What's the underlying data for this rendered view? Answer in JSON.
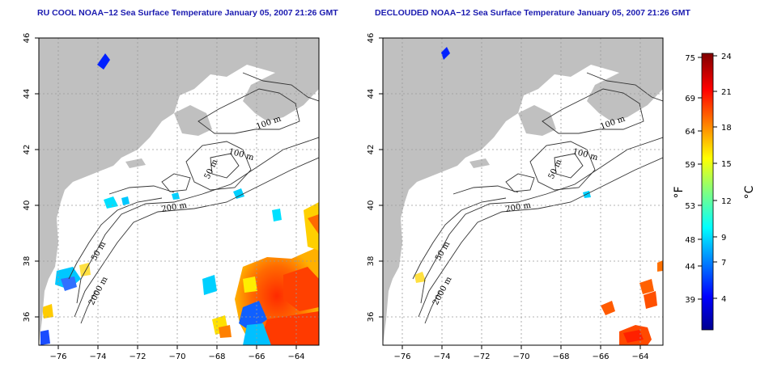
{
  "maps": [
    {
      "id": "left",
      "title": "RU COOL NOAA−12 Sea Surface Temperature January 05, 2007 21:26 GMT",
      "variant": "raw"
    },
    {
      "id": "right",
      "title": "DECLOUDED NOAA−12 Sea Surface Temperature January 05, 2007 21:26 GMT",
      "variant": "declouded"
    }
  ],
  "axes": {
    "lon_ticks": [
      "−76",
      "−74",
      "−72",
      "−70",
      "−68",
      "−66",
      "−64"
    ],
    "lat_ticks": [
      "36",
      "38",
      "40",
      "42",
      "44",
      "46"
    ],
    "lon_range": [
      -77,
      -63
    ],
    "lat_range": [
      35,
      46
    ],
    "grid": "dotted"
  },
  "isobaths": [
    "100 m",
    "100 m",
    "50 m",
    "200 m",
    "50 m",
    "2000 m"
  ],
  "colorbar": {
    "fahrenheit_labels": [
      "75",
      "69",
      "64",
      "59",
      "53",
      "48",
      "44",
      "39"
    ],
    "celsius_labels": [
      "24",
      "21",
      "18",
      "15",
      "12",
      "9",
      "7",
      "4"
    ],
    "unit_f": "°F",
    "unit_c": "°C",
    "range_c": [
      0,
      24
    ],
    "colormap": "jet"
  },
  "colors": {
    "title": "#1b1bb0",
    "land": "#c0c0c0",
    "ocean": "#ffffff",
    "contour": "#333333"
  }
}
